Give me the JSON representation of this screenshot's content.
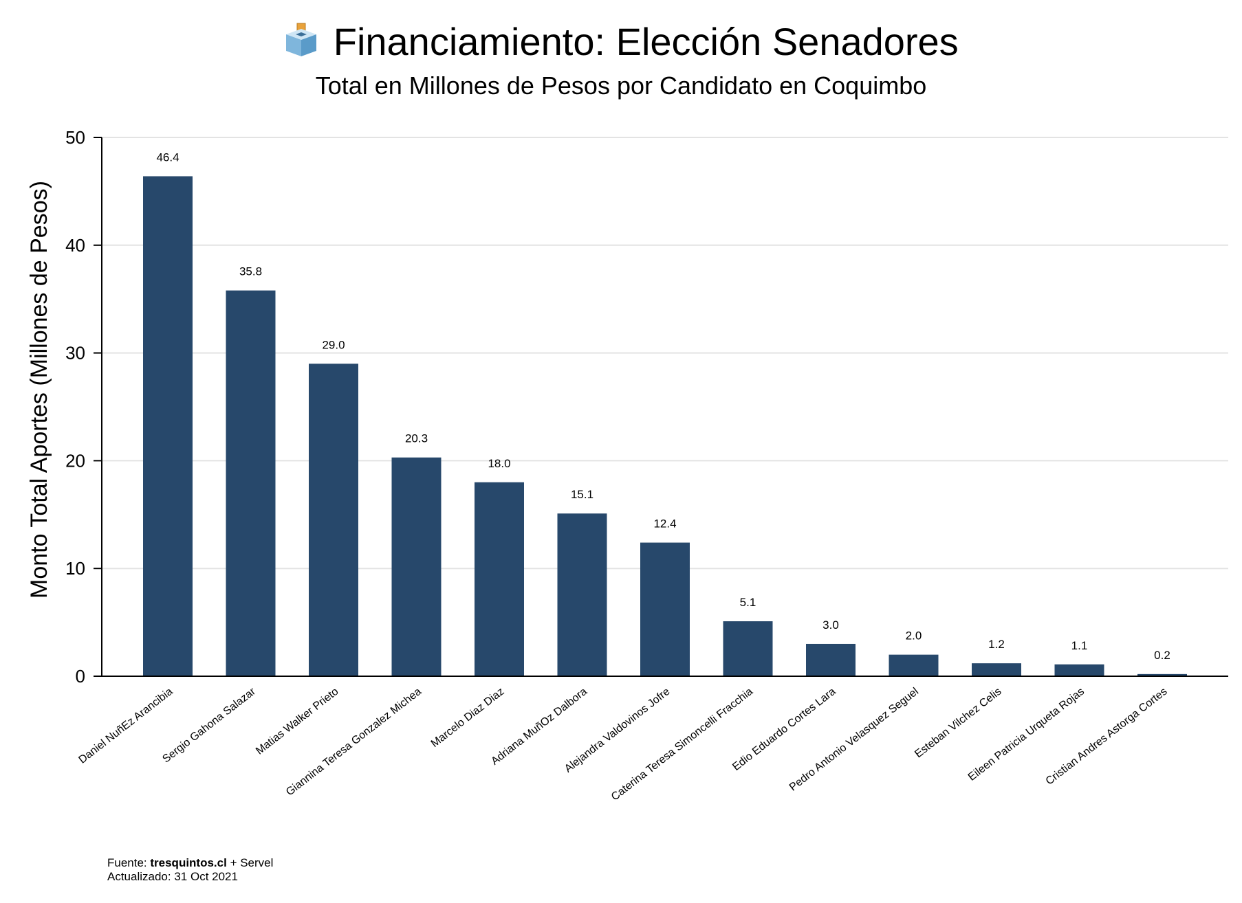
{
  "colors": {
    "bar": "#27486b",
    "grid": "#e3e3e3",
    "axis": "#000000"
  },
  "header": {
    "icon": "ballot-box-icon"
  },
  "footer": {
    "source_prefix": "Fuente: ",
    "source_site": "tresquintos.cl",
    "source_suffix": " + Servel",
    "updated": "Actualizado: 31 Oct 2021"
  },
  "chart_data": {
    "type": "bar",
    "title": "Financiamiento: Elección Senadores",
    "subtitle": "Total en Millones de Pesos por Candidato en Coquimbo",
    "xlabel": "",
    "ylabel": "Monto Total Aportes (Millones de Pesos)",
    "ylim": [
      0,
      50
    ],
    "yticks": [
      0,
      10,
      20,
      30,
      40,
      50
    ],
    "grid": true,
    "categories": [
      "Daniel NuñEz Arancibia",
      "Sergio Gahona Salazar",
      "Matias Walker Prieto",
      "Giannina Teresa Gonzalez Michea",
      "Marcelo Diaz Diaz",
      "Adriana MuñOz Dalbora",
      "Alejandra Valdovinos Jofre",
      "Caterina Teresa Simoncelli Fracchia",
      "Edio Eduardo Cortes Lara",
      "Pedro Antonio Velasquez Seguel",
      "Esteban Vilchez Celis",
      "Eileen Patricia Urqueta Rojas",
      "Cristian Andres Astorga Cortes"
    ],
    "values": [
      46.4,
      35.8,
      29.0,
      20.3,
      18.0,
      15.1,
      12.4,
      5.1,
      3.0,
      2.0,
      1.2,
      1.1,
      0.2
    ],
    "value_labels": [
      "46.4",
      "35.8",
      "29.0",
      "20.3",
      "18.0",
      "15.1",
      "12.4",
      "5.1",
      "3.0",
      "2.0",
      "1.2",
      "1.1",
      "0.2"
    ]
  }
}
